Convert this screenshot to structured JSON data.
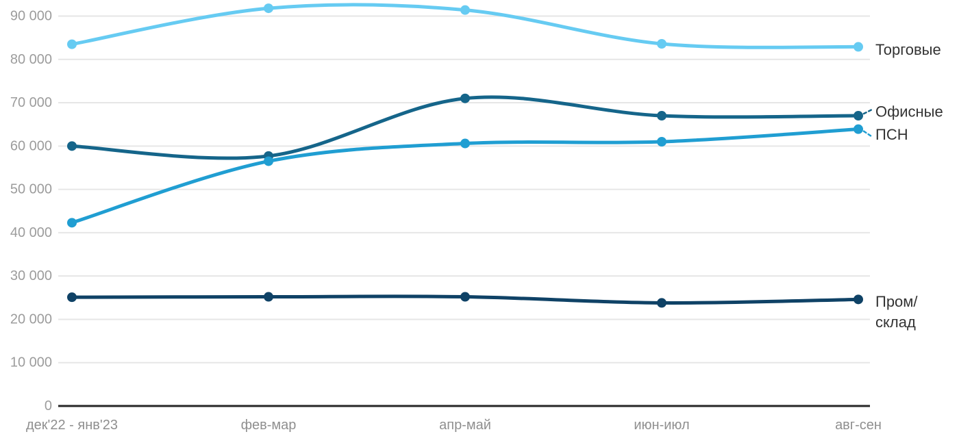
{
  "chart_data": {
    "type": "line",
    "title": "",
    "xlabel": "",
    "ylabel": "",
    "grid": "horizontal",
    "legend_position": "right-of-line-ends",
    "categories": [
      "дек'22 - янв'23",
      "фев-мар",
      "апр-май",
      "июн-июл",
      "авг-сен"
    ],
    "series": [
      {
        "name": "Торговые",
        "slug": "torgovye",
        "color": "#66CBF2",
        "values": [
          83500,
          91800,
          91400,
          83600,
          82900
        ],
        "label_lines": [
          "Торговые"
        ],
        "label_dy": 4,
        "connector": false
      },
      {
        "name": "Офисные",
        "slug": "ofisnye",
        "color": "#15658A",
        "values": [
          60000,
          57700,
          71000,
          67000,
          67000
        ],
        "label_lines": [
          "Офисные"
        ],
        "label_dy": -6,
        "connector": true
      },
      {
        "name": "ПСН",
        "slug": "psn",
        "color": "#209ED2",
        "values": [
          42300,
          56500,
          60600,
          61000,
          63900
        ],
        "label_lines": [
          "ПСН"
        ],
        "label_dy": 8,
        "connector": true
      },
      {
        "name": "Пром/склад",
        "slug": "prom-sklad",
        "color": "#0F4266",
        "values": [
          25100,
          25200,
          25200,
          23800,
          24600
        ],
        "label_lines": [
          "Пром/",
          "склад"
        ],
        "label_dy": 3,
        "connector": false
      }
    ],
    "yticks": [
      {
        "value": 0,
        "label": "0"
      },
      {
        "value": 10000,
        "label": "10 000"
      },
      {
        "value": 20000,
        "label": "20 000"
      },
      {
        "value": 30000,
        "label": "30 000"
      },
      {
        "value": 40000,
        "label": "40 000"
      },
      {
        "value": 50000,
        "label": "50 000"
      },
      {
        "value": 60000,
        "label": "60 000"
      },
      {
        "value": 70000,
        "label": "70 000"
      },
      {
        "value": 80000,
        "label": "80 000"
      },
      {
        "value": 90000,
        "label": "90 000"
      }
    ],
    "ylim": [
      0,
      93700
    ],
    "colors": {
      "axis_line": "#262626",
      "gridline": "#E6E6E6",
      "y_tick_label": "#9C9C9C",
      "x_tick_label": "#8F8F8F",
      "series_label": "#333333"
    }
  }
}
